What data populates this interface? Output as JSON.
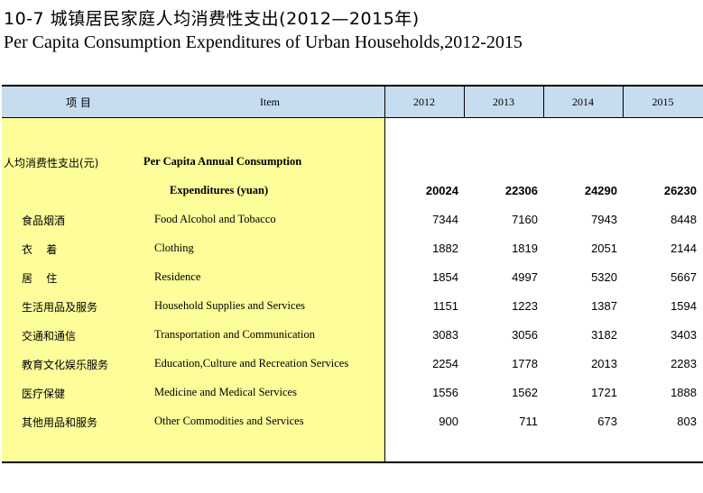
{
  "title": {
    "chinese": "10-7   城镇居民家庭人均消费性支出(2012—2015年)",
    "english": "Per Capita Consumption Expenditures of Urban Households,2012-2015"
  },
  "header": {
    "item_cn": "项    目",
    "item_en": "Item",
    "years": [
      "2012",
      "2013",
      "2014",
      "2015"
    ]
  },
  "total": {
    "cn": "人均消费性支出(元)",
    "en_line1": "Per Capita Annual Consumption",
    "en_line2": "Expenditures (yuan)",
    "values": [
      "20024",
      "22306",
      "24290",
      "26230"
    ]
  },
  "rows": [
    {
      "cn": "食品烟酒",
      "en": "Food Alcohol and Tobacco",
      "values": [
        "7344",
        "7160",
        "7943",
        "8448"
      ]
    },
    {
      "cn": "衣    着",
      "en": "Clothing",
      "values": [
        "1882",
        "1819",
        "2051",
        "2144"
      ]
    },
    {
      "cn": "居    住",
      "en": "Residence",
      "values": [
        "1854",
        "4997",
        "5320",
        "5667"
      ]
    },
    {
      "cn": "生活用品及服务",
      "en": "Household Supplies and Services",
      "values": [
        "1151",
        "1223",
        "1387",
        "1594"
      ]
    },
    {
      "cn": "交通和通信",
      "en": "Transportation and Communication",
      "values": [
        "3083",
        "3056",
        "3182",
        "3403"
      ]
    },
    {
      "cn": "教育文化娱乐服务",
      "en": "Education,Culture and Recreation Services",
      "values": [
        "2254",
        "1778",
        "2013",
        "2283"
      ]
    },
    {
      "cn": "医疗保健",
      "en": "Medicine and Medical Services",
      "values": [
        "1556",
        "1562",
        "1721",
        "1888"
      ]
    },
    {
      "cn": "其他用品和服务",
      "en": "Other Commodities and Services",
      "values": [
        "900",
        "711",
        "673",
        "803"
      ]
    }
  ]
}
